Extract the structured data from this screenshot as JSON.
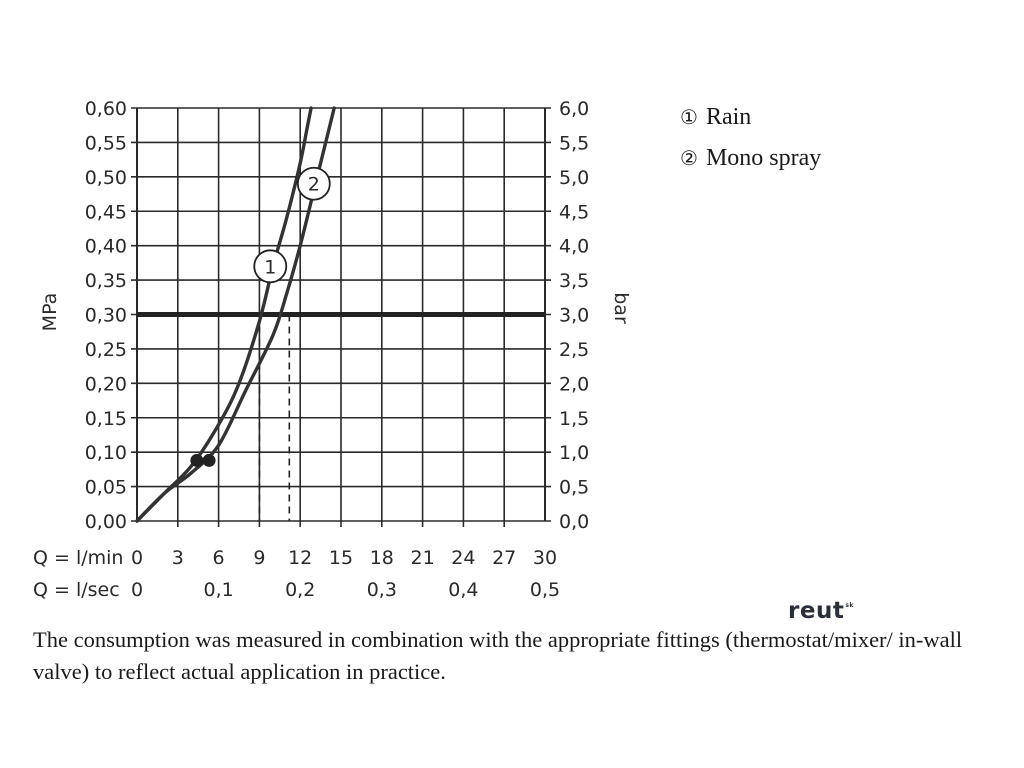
{
  "chart_data": {
    "type": "line",
    "x_axis": {
      "label": "Q = l/min",
      "ticks": [
        "0",
        "3",
        "6",
        "9",
        "12",
        "15",
        "18",
        "21",
        "24",
        "27",
        "30"
      ],
      "range": [
        0,
        30
      ],
      "secondary": {
        "label": "Q = l/sec",
        "ticks": [
          {
            "value": 0,
            "label": "0"
          },
          {
            "value": 6,
            "label": "0,1"
          },
          {
            "value": 12,
            "label": "0,2"
          },
          {
            "value": 18,
            "label": "0,3"
          },
          {
            "value": 24,
            "label": "0,4"
          },
          {
            "value": 30,
            "label": "0,5"
          }
        ]
      }
    },
    "y_axis": {
      "label": "MPa",
      "range": [
        0,
        0.6
      ],
      "ticks": [
        "0,00",
        "0,05",
        "0,10",
        "0,15",
        "0,20",
        "0,25",
        "0,30",
        "0,35",
        "0,40",
        "0,45",
        "0,50",
        "0,55",
        "0,60"
      ]
    },
    "y2_axis": {
      "label": "bar",
      "ticks": [
        "0,0",
        "0,5",
        "1,0",
        "1,5",
        "2,0",
        "2,5",
        "3,0",
        "3,5",
        "4,0",
        "4,5",
        "5,0",
        "5,5",
        "6,0"
      ]
    },
    "grid": true,
    "reference_line": {
      "y": 0.3
    },
    "series": [
      {
        "name": "Rain",
        "marker_label": "1",
        "marker_point": [
          9.8,
          0.37
        ],
        "start_dot": [
          4.4,
          0.088
        ],
        "drop_x": 9.0,
        "points": [
          [
            0,
            0
          ],
          [
            2,
            0.04
          ],
          [
            4,
            0.08
          ],
          [
            6,
            0.14
          ],
          [
            7.5,
            0.2
          ],
          [
            9,
            0.29
          ],
          [
            10,
            0.37
          ],
          [
            11,
            0.44
          ],
          [
            12,
            0.52
          ],
          [
            12.5,
            0.57
          ],
          [
            12.8,
            0.6
          ]
        ]
      },
      {
        "name": "Mono spray",
        "marker_label": "2",
        "marker_point": [
          13.0,
          0.49
        ],
        "start_dot": [
          5.3,
          0.088
        ],
        "drop_x": 11.2,
        "points": [
          [
            0,
            0
          ],
          [
            2,
            0.04
          ],
          [
            4,
            0.07
          ],
          [
            6,
            0.11
          ],
          [
            8,
            0.19
          ],
          [
            10,
            0.27
          ],
          [
            11,
            0.33
          ],
          [
            12,
            0.4
          ],
          [
            13,
            0.48
          ],
          [
            14,
            0.56
          ],
          [
            14.5,
            0.6
          ]
        ]
      }
    ]
  },
  "legend": {
    "items": [
      {
        "symbol": "①",
        "label": "Rain"
      },
      {
        "symbol": "②",
        "label": "Mono spray"
      }
    ]
  },
  "note": "The consumption was measured in combination with the appropriate fittings (thermostat/mixer/ in-wall valve) to reflect actual application in practice.",
  "logo": {
    "text": "reut",
    "sup": "sk"
  },
  "colors": {
    "ink": "#2a2a2a",
    "line": "#333333"
  }
}
